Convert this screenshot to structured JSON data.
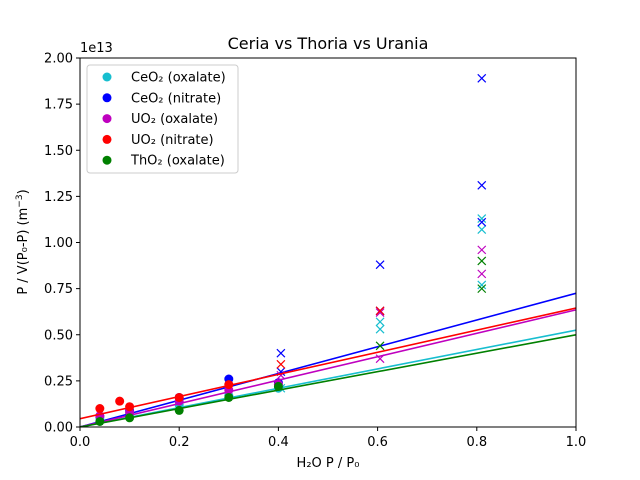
{
  "chart_data": {
    "type": "scatter",
    "title": "Ceria vs Thoria vs Urania",
    "xlabel": "H₂O P / P₀",
    "ylabel_main": "P / V(P₀-P) (m",
    "ylabel_sup": "−3",
    "ylabel_end": ")",
    "y_offset_label": "1e13",
    "xlim": [
      0.0,
      1.0
    ],
    "ylim": [
      0.0,
      2.0
    ],
    "x_ticks": [
      0.0,
      0.2,
      0.4,
      0.6,
      0.8,
      1.0
    ],
    "x_tick_labels": [
      "0.0",
      "0.2",
      "0.4",
      "0.6",
      "0.8",
      "1.0"
    ],
    "y_ticks": [
      0.0,
      0.25,
      0.5,
      0.75,
      1.0,
      1.25,
      1.5,
      1.75,
      2.0
    ],
    "y_tick_labels": [
      "0.00",
      "0.25",
      "0.50",
      "0.75",
      "1.00",
      "1.25",
      "1.50",
      "1.75",
      "2.00"
    ],
    "grid": false,
    "legend_position": "top-left",
    "series": [
      {
        "name": "CeO₂ (oxalate)",
        "color": "#17becf",
        "points": [
          [
            0.04,
            0.05
          ],
          [
            0.1,
            0.07
          ],
          [
            0.2,
            0.12
          ],
          [
            0.3,
            0.17
          ],
          [
            0.4,
            0.21
          ]
        ],
        "crosses": [
          [
            0.405,
            0.21
          ],
          [
            0.605,
            0.53
          ],
          [
            0.605,
            0.57
          ],
          [
            0.81,
            0.77
          ],
          [
            0.81,
            1.07
          ],
          [
            0.81,
            1.13
          ]
        ],
        "fit": [
          0.0,
          0.0,
          1.0,
          0.525
        ]
      },
      {
        "name": "CeO₂ (nitrate)",
        "color": "#0000ff",
        "points": [
          [
            0.04,
            0.06
          ],
          [
            0.1,
            0.09
          ],
          [
            0.2,
            0.16
          ],
          [
            0.3,
            0.26
          ],
          [
            0.4,
            0.24
          ]
        ],
        "crosses": [
          [
            0.405,
            0.4
          ],
          [
            0.405,
            0.3
          ],
          [
            0.605,
            0.88
          ],
          [
            0.605,
            0.63
          ],
          [
            0.81,
            1.11
          ],
          [
            0.81,
            1.31
          ],
          [
            0.81,
            1.89
          ]
        ],
        "fit": [
          0.0,
          0.0,
          1.0,
          0.725
        ]
      },
      {
        "name": "UO₂ (oxalate)",
        "color": "#bf00bf",
        "points": [
          [
            0.04,
            0.06
          ],
          [
            0.1,
            0.08
          ],
          [
            0.2,
            0.14
          ],
          [
            0.3,
            0.2
          ],
          [
            0.4,
            0.23
          ]
        ],
        "crosses": [
          [
            0.405,
            0.28
          ],
          [
            0.605,
            0.37
          ],
          [
            0.605,
            0.62
          ],
          [
            0.81,
            0.83
          ],
          [
            0.81,
            0.96
          ]
        ],
        "fit": [
          0.0,
          0.0,
          1.0,
          0.635
        ]
      },
      {
        "name": "UO₂ (nitrate)",
        "color": "#ff0000",
        "points": [
          [
            0.04,
            0.1
          ],
          [
            0.08,
            0.14
          ],
          [
            0.1,
            0.11
          ],
          [
            0.2,
            0.16
          ],
          [
            0.3,
            0.23
          ]
        ],
        "crosses": [
          [
            0.405,
            0.34
          ],
          [
            0.605,
            0.63
          ]
        ],
        "fit": [
          0.0,
          0.045,
          1.0,
          0.645
        ]
      },
      {
        "name": "ThO₂ (oxalate)",
        "color": "#008000",
        "points": [
          [
            0.04,
            0.03
          ],
          [
            0.1,
            0.05
          ],
          [
            0.2,
            0.09
          ],
          [
            0.3,
            0.16
          ],
          [
            0.4,
            0.22
          ]
        ],
        "crosses": [
          [
            0.605,
            0.44
          ],
          [
            0.81,
            0.75
          ],
          [
            0.81,
            0.9
          ]
        ],
        "fit": [
          0.0,
          0.0,
          1.0,
          0.5
        ]
      }
    ]
  }
}
